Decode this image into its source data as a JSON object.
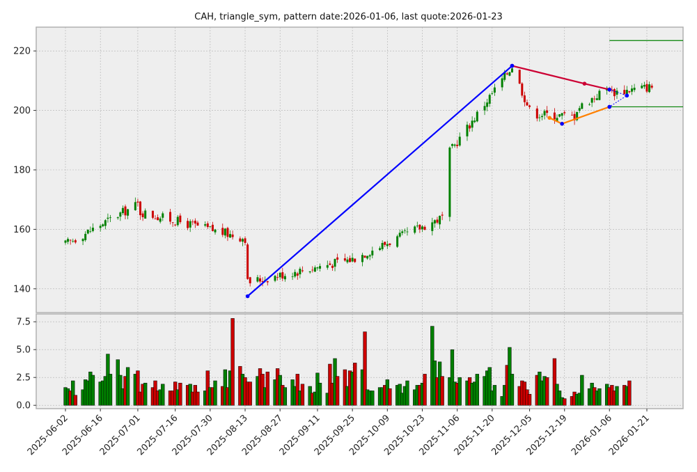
{
  "title": "CAH, triangle_sym, pattern date:2026-01-06, last quote:2026-01-23",
  "colors": {
    "up": "#008000",
    "down": "#cc0000",
    "panel_bg": "#eeeeee",
    "grid": "#b0b0b0",
    "trend": "#0000ff",
    "upper_line": "#cc0033",
    "lower_line": "#ff8000",
    "level": "#008000"
  },
  "chart_data": [
    {
      "type": "candlestick",
      "ylim": [
        132,
        228
      ],
      "yticks": [
        140,
        160,
        180,
        200,
        220
      ],
      "xticks": [
        "2025-06-02",
        "2025-06-16",
        "2025-07-01",
        "2025-07-16",
        "2025-07-30",
        "2025-08-13",
        "2025-08-27",
        "2025-09-11",
        "2025-09-25",
        "2025-10-09",
        "2025-10-23",
        "2025-11-06",
        "2025-11-20",
        "2025-12-05",
        "2025-12-19",
        "2026-01-06",
        "2026-01-21"
      ],
      "segments": [
        {
          "start": "2025-06-02",
          "end": "2025-07-01",
          "from": 155.0,
          "to": 168.5
        },
        {
          "start": "2025-07-01",
          "end": "2025-08-13",
          "from": 166.0,
          "to": 157.0
        },
        {
          "start": "2025-08-13",
          "end": "2025-09-25",
          "from": 142.0,
          "to": 150.0
        },
        {
          "start": "2025-09-25",
          "end": "2025-10-31",
          "from": 150.0,
          "to": 164.0
        },
        {
          "start": "2025-11-03",
          "end": "2025-11-28",
          "from": 186.0,
          "to": 215.0
        },
        {
          "start": "2025-11-28",
          "end": "2025-12-05",
          "from": 215.0,
          "to": 200.0
        },
        {
          "start": "2025-12-05",
          "end": "2025-12-23",
          "from": 199.0,
          "to": 198.0
        },
        {
          "start": "2025-12-23",
          "end": "2026-01-06",
          "from": 200.0,
          "to": 208.0
        },
        {
          "start": "2026-01-06",
          "end": "2026-01-23",
          "from": 206.0,
          "to": 208.0
        }
      ],
      "overlay_lines": [
        {
          "role": "trend",
          "points": [
            [
              "2025-08-14",
              137.5
            ],
            [
              "2025-11-28",
              215.0
            ]
          ]
        },
        {
          "role": "upper",
          "points": [
            [
              "2025-11-28",
              215.0
            ],
            [
              "2025-12-27",
              209.0
            ],
            [
              "2026-01-06",
              207.0
            ]
          ]
        },
        {
          "role": "lower",
          "points": [
            [
              "2025-12-13",
              197.5
            ],
            [
              "2025-12-18",
              195.5
            ],
            [
              "2026-01-06",
              201.2
            ]
          ]
        },
        {
          "role": "projection",
          "points": [
            [
              "2026-01-06",
              207.0
            ],
            [
              "2026-01-13",
              205.0
            ],
            [
              "2026-01-06",
              201.2
            ]
          ]
        }
      ],
      "levels": [
        {
          "value": 223.5,
          "start": "2026-01-06"
        },
        {
          "value": 201.2,
          "start": "2026-01-06"
        }
      ]
    },
    {
      "type": "bar",
      "name": "volume",
      "ylim": [
        -0.3,
        8.2
      ],
      "yticks": [
        "0.0",
        "2.5",
        "5.0",
        "7.5"
      ],
      "values": [
        1.6,
        1.5,
        1.3,
        2.2,
        0.9,
        1.4,
        2.3,
        2.2,
        3.0,
        2.7,
        2.1,
        2.2,
        2.6,
        4.6,
        2.8,
        4.1,
        2.7,
        1.5,
        2.6,
        3.4,
        2.8,
        3.1,
        1.2,
        1.9,
        2.0,
        1.6,
        2.2,
        1.3,
        1.4,
        1.9,
        1.3,
        1.3,
        2.1,
        1.4,
        2.0,
        1.8,
        1.9,
        1.2,
        1.8,
        1.2,
        1.3,
        3.1,
        1.6,
        1.6,
        2.2,
        1.7,
        3.2,
        1.6,
        3.1,
        7.8,
        3.5,
        2.8,
        2.5,
        2.1,
        2.1,
        2.6,
        3.3,
        2.8,
        1.6,
        3.0,
        2.3,
        3.3,
        2.7,
        1.8,
        1.6,
        2.3,
        1.7,
        2.8,
        1.3,
        1.9,
        1.7,
        1.1,
        1.2,
        2.9,
        2.0,
        1.1,
        3.7,
        2.0,
        4.2,
        2.6,
        3.2,
        1.7,
        3.1,
        3.0,
        3.8,
        3.2,
        6.6,
        1.4,
        1.3,
        1.3,
        1.6,
        1.6,
        1.8,
        2.3,
        1.5,
        1.8,
        1.9,
        1.1,
        1.7,
        2.2,
        1.4,
        1.8,
        1.8,
        2.0,
        2.8,
        7.1,
        4.0,
        2.5,
        3.9,
        2.6,
        2.5,
        5.0,
        2.1,
        2.0,
        2.5,
        2.2,
        2.5,
        2.0,
        2.1,
        2.8,
        2.6,
        3.1,
        3.4,
        1.3,
        1.8,
        0.8,
        1.8,
        3.6,
        5.2,
        2.8,
        1.7,
        2.2,
        2.1,
        1.4,
        1.0,
        2.7,
        3.0,
        2.2,
        2.6,
        2.5,
        4.2,
        1.9,
        1.3,
        0.7,
        0.6,
        0.8,
        1.2,
        1.0,
        1.1,
        2.7,
        1.5,
        2.0,
        1.6,
        1.3,
        1.5,
        1.9,
        1.6,
        1.8,
        1.3,
        1.7,
        1.8,
        1.7,
        2.2
      ]
    }
  ]
}
